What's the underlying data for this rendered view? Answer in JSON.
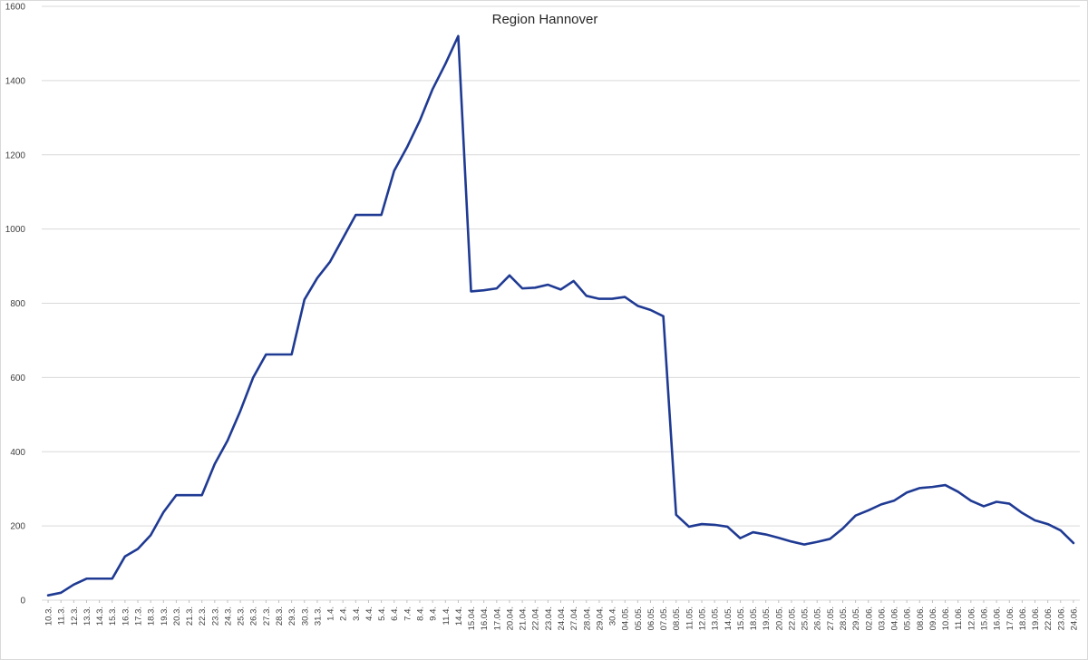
{
  "chart_data": {
    "type": "line",
    "title": "Region Hannover",
    "xlabel": "",
    "ylabel": "",
    "ylim": [
      0,
      1600
    ],
    "yticks": [
      0,
      200,
      400,
      600,
      800,
      1000,
      1200,
      1400,
      1600
    ],
    "grid": "horizontal",
    "legend": "none",
    "line_color": "#1f3a93",
    "grid_color": "#d9d9d9",
    "categories": [
      "10.3.",
      "11.3.",
      "12.3.",
      "13.3.",
      "14.3.",
      "15.3.",
      "16.3.",
      "17.3.",
      "18.3.",
      "19.3.",
      "20.3.",
      "21.3.",
      "22.3.",
      "23.3.",
      "24.3.",
      "25.3.",
      "26.3.",
      "27.3.",
      "28.3.",
      "29.3.",
      "30.3.",
      "31.3.",
      "1.4.",
      "2.4.",
      "3.4.",
      "4.4.",
      "5.4.",
      "6.4.",
      "7.4.",
      "8.4.",
      "9.4.",
      "11.4.",
      "14.4.",
      "15.04.",
      "16.04.",
      "17.04.",
      "20.04.",
      "21.04.",
      "22.04.",
      "23.04.",
      "24.04.",
      "27.04.",
      "28.04.",
      "29.04.",
      "30.4.",
      "04.05.",
      "05.05.",
      "06.05.",
      "07.05.",
      "08.05.",
      "11.05.",
      "12.05.",
      "13.05.",
      "14.05.",
      "15.05.",
      "18.05.",
      "19.05.",
      "20.05.",
      "22.05.",
      "25.05.",
      "26.05.",
      "27.05.",
      "28.05.",
      "29.05.",
      "02.06.",
      "03.06.",
      "04.06.",
      "05.06.",
      "08.06.",
      "09.06.",
      "10.06.",
      "11.06.",
      "12.06.",
      "15.06.",
      "16.06.",
      "17.06.",
      "18.06.",
      "19.06.",
      "22.06.",
      "23.06.",
      "24.06."
    ],
    "values": [
      13,
      20,
      42,
      58,
      58,
      58,
      118,
      138,
      175,
      237,
      283,
      283,
      283,
      367,
      430,
      510,
      600,
      662,
      662,
      662,
      810,
      868,
      912,
      975,
      1038,
      1038,
      1038,
      1157,
      1220,
      1292,
      1377,
      1445,
      1520,
      832,
      835,
      840,
      875,
      840,
      842,
      850,
      837,
      860,
      820,
      812,
      812,
      817,
      793,
      782,
      765,
      230,
      198,
      205,
      203,
      198,
      167,
      183,
      177,
      168,
      158,
      150,
      157,
      165,
      193,
      228,
      242,
      258,
      268,
      290,
      302,
      305,
      310,
      292,
      268,
      253,
      265,
      260,
      235,
      215,
      205,
      188,
      154
    ]
  }
}
